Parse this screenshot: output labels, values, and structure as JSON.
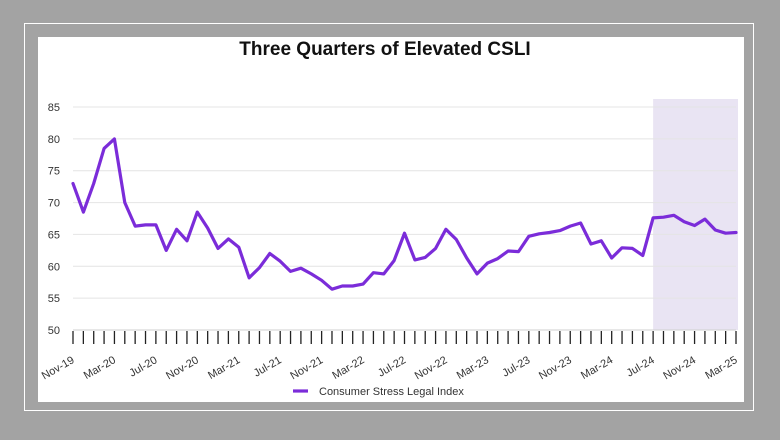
{
  "chart_data": {
    "type": "line",
    "title": "Three Quarters of Elevated CSLI",
    "xlabel": "",
    "ylabel": "",
    "ylim": [
      50,
      85
    ],
    "yticks": [
      50,
      55,
      60,
      65,
      70,
      75,
      80,
      85
    ],
    "grid": "horizontal",
    "legend_position": "bottom-center",
    "x_tick_labels": [
      "Nov-19",
      "Mar-20",
      "Jul-20",
      "Nov-20",
      "Mar-21",
      "Jul-21",
      "Nov-21",
      "Mar-22",
      "Jul-22",
      "Nov-22",
      "Mar-23",
      "Jul-23",
      "Nov-23",
      "Mar-24",
      "Jul-24",
      "Nov-24",
      "Mar-25"
    ],
    "x": [
      "Nov-19",
      "Dec-19",
      "Jan-20",
      "Feb-20",
      "Mar-20",
      "Apr-20",
      "May-20",
      "Jun-20",
      "Jul-20",
      "Aug-20",
      "Sep-20",
      "Oct-20",
      "Nov-20",
      "Dec-20",
      "Jan-21",
      "Feb-21",
      "Mar-21",
      "Apr-21",
      "May-21",
      "Jun-21",
      "Jul-21",
      "Aug-21",
      "Sep-21",
      "Oct-21",
      "Nov-21",
      "Dec-21",
      "Jan-22",
      "Feb-22",
      "Mar-22",
      "Apr-22",
      "May-22",
      "Jun-22",
      "Jul-22",
      "Aug-22",
      "Sep-22",
      "Oct-22",
      "Nov-22",
      "Dec-22",
      "Jan-23",
      "Feb-23",
      "Mar-23",
      "Apr-23",
      "May-23",
      "Jun-23",
      "Jul-23",
      "Aug-23",
      "Sep-23",
      "Oct-23",
      "Nov-23",
      "Dec-23",
      "Jan-24",
      "Feb-24",
      "Mar-24",
      "Apr-24",
      "May-24",
      "Jun-24",
      "Jul-24",
      "Aug-24",
      "Sep-24",
      "Oct-24",
      "Nov-24",
      "Dec-24",
      "Jan-25",
      "Feb-25",
      "Mar-25"
    ],
    "series": [
      {
        "name": "Consumer Stress Legal Index",
        "color": "#7b2cd9",
        "values": [
          73.0,
          68.5,
          73.0,
          78.5,
          80.0,
          70.0,
          66.3,
          66.5,
          66.5,
          62.5,
          65.8,
          64.0,
          68.5,
          66.0,
          62.8,
          64.3,
          63.0,
          58.2,
          59.8,
          62.0,
          60.8,
          59.2,
          59.7,
          58.8,
          57.8,
          56.4,
          56.9,
          56.9,
          57.2,
          59.0,
          58.8,
          60.9,
          65.2,
          61.0,
          61.4,
          62.8,
          65.8,
          64.2,
          61.3,
          58.8,
          60.5,
          61.2,
          62.4,
          62.3,
          64.7,
          65.1,
          65.3,
          65.6,
          66.3,
          66.8,
          63.5,
          64.0,
          61.3,
          62.9,
          62.8,
          61.7,
          67.6,
          67.7,
          68.0,
          67.0,
          66.4,
          67.4,
          65.7,
          65.2,
          65.3
        ]
      }
    ],
    "highlight": {
      "from": "Jul-24",
      "to": "Mar-25",
      "color": "#e9e4f3"
    }
  },
  "legend": {
    "label": "Consumer Stress Legal Index"
  }
}
